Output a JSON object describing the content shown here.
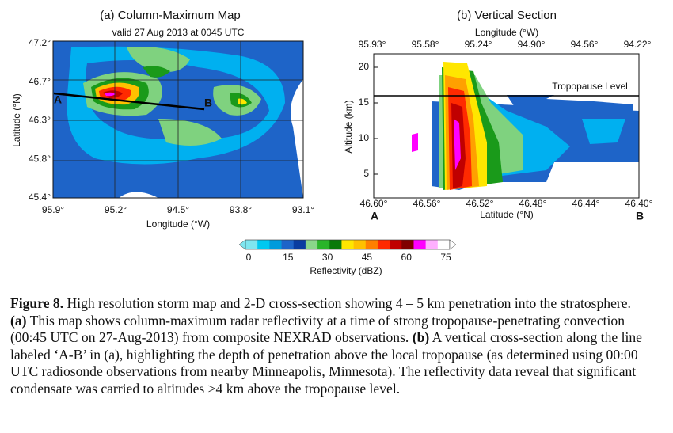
{
  "panel_a": {
    "title": "(a) Column-Maximum Map",
    "subtitle": "valid 27 Aug 2013 at 0045 UTC",
    "xlabel": "Longitude (°W)",
    "ylabel": "Latitude (°N)",
    "xticks": [
      "95.9°",
      "95.2°",
      "94.5°",
      "93.8°",
      "93.1°"
    ],
    "yticks": [
      "47.2°",
      "46.7°",
      "46.3°",
      "45.8°",
      "45.4°"
    ],
    "point_a": "A",
    "point_b": "B"
  },
  "panel_b": {
    "title": "(b) Vertical Section",
    "top_axis_label": "Longitude (°W)",
    "top_ticks": [
      "95.93°",
      "95.58°",
      "95.24°",
      "94.90°",
      "94.56°",
      "94.22°"
    ],
    "ylabel": "Altitude (km)",
    "yticks": [
      "20",
      "15",
      "10",
      "5"
    ],
    "xticks": [
      "46.60°",
      "46.56°",
      "46.52°",
      "46.48°",
      "46.44°",
      "46.40°"
    ],
    "xlabel": "Latitude (°N)",
    "end_a": "A",
    "end_b": "B",
    "annotation": "Tropopause Level"
  },
  "colorbar": {
    "ticks": [
      "0",
      "15",
      "30",
      "45",
      "60",
      "75"
    ],
    "label": "Reflectivity (dBZ)"
  },
  "caption": {
    "figure_label": "Figure 8.",
    "intro": " High resolution storm map and 2-D cross-section showing 4 – 5 km penetration into the stratosphere. ",
    "part_a_label": "(a)",
    "part_a_text": " This map shows column-maximum radar reflectivity at a time of strong tropopause-penetrating convection (00:45 UTC on 27-Aug-2013) from composite NEXRAD observations. ",
    "part_b_label": "(b)",
    "part_b_text": " A vertical cross-section along the line labeled ‘A-B’ in (a), highlighting the depth of penetration above the local tropopause (as determined using 00:00 UTC radiosonde observations from nearby Minneapolis, Minnesota). The reflectivity data reveal that significant condensate was carried to altitudes >4 km above the tropopause level."
  }
}
